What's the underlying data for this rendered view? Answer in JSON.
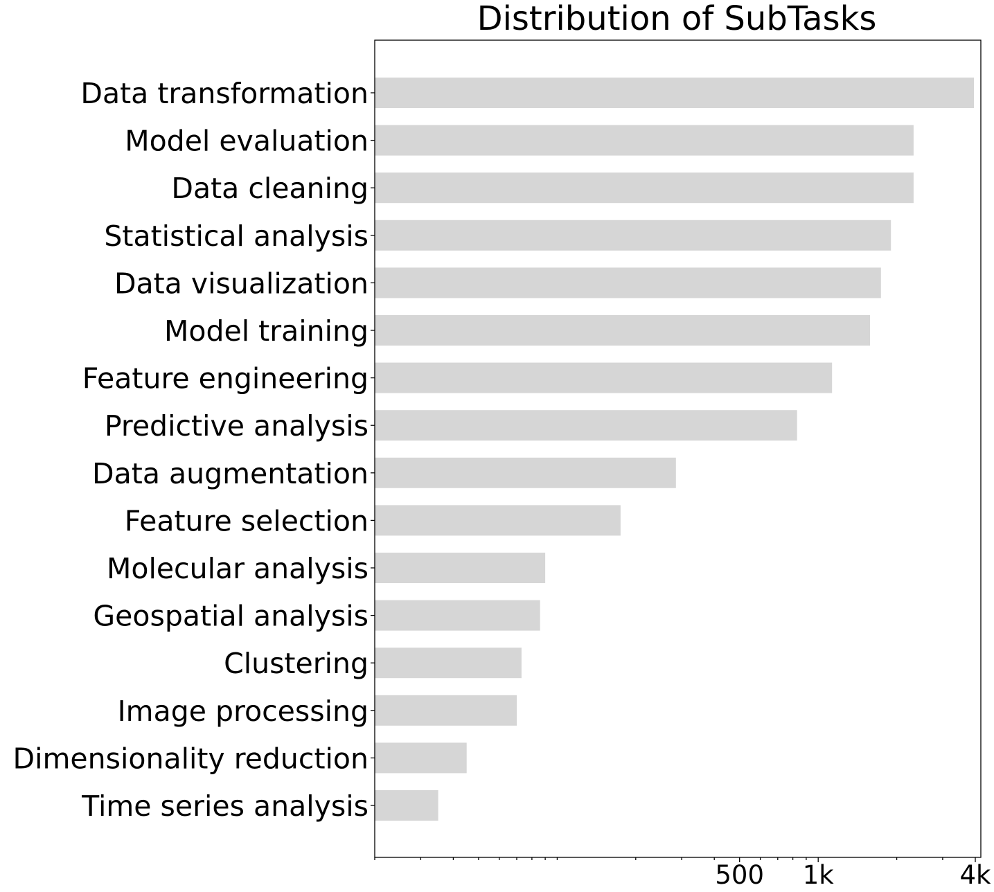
{
  "chart_data": {
    "type": "bar",
    "orientation": "horizontal",
    "title": "Distribution of SubTasks",
    "xlabel": "",
    "ylabel": "",
    "xscale": "log",
    "xlim": [
      20,
      4200
    ],
    "grid": false,
    "legend": "none",
    "bar_color": "#d6d6d6",
    "categories": [
      "Data transformation",
      "Model evaluation",
      "Data cleaning",
      "Statistical analysis",
      "Data visualization",
      "Model training",
      "Feature engineering",
      "Predictive analysis",
      "Data augmentation",
      "Feature selection",
      "Molecular analysis",
      "Geospatial analysis",
      "Clustering",
      "Image processing",
      "Dimensionality reduction",
      "Time series analysis"
    ],
    "values": [
      3950,
      2320,
      2320,
      1900,
      1740,
      1580,
      1130,
      830,
      285,
      175,
      90,
      86,
      73,
      70,
      45,
      35
    ],
    "major_ticks": [
      {
        "value": 500,
        "label": "500"
      },
      {
        "value": 1000,
        "label": "1k"
      },
      {
        "value": 4000,
        "label": "4k"
      }
    ],
    "minor_ticks": [
      20,
      30,
      40,
      50,
      60,
      70,
      80,
      90,
      100,
      200,
      300,
      400,
      600,
      700,
      800,
      900,
      2000,
      3000
    ]
  }
}
